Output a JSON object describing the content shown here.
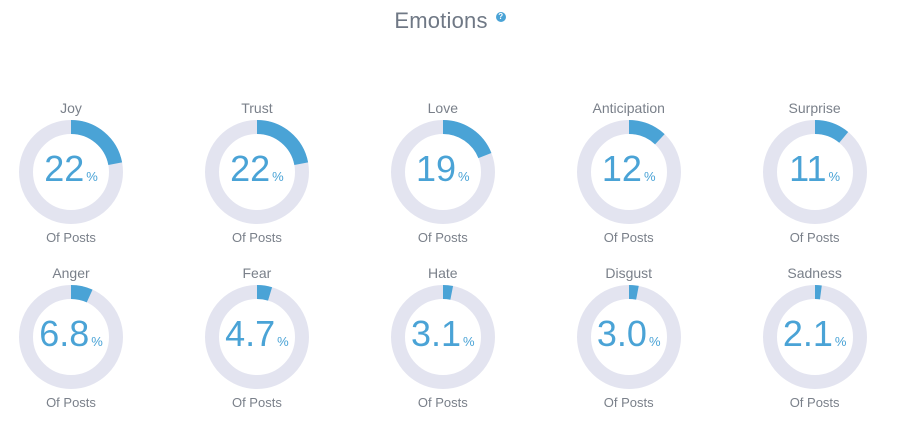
{
  "header": {
    "title": "Emotions",
    "help_icon": "?"
  },
  "chart_data": {
    "type": "pie",
    "unit": "%",
    "track_color": "#e3e4f0",
    "fill_color": "#4aa3d6",
    "items": [
      {
        "label": "Joy",
        "value": 22,
        "value_text": "22",
        "unit": "%",
        "sub": "Of Posts"
      },
      {
        "label": "Trust",
        "value": 22,
        "value_text": "22",
        "unit": "%",
        "sub": "Of Posts"
      },
      {
        "label": "Love",
        "value": 19,
        "value_text": "19",
        "unit": "%",
        "sub": "Of Posts"
      },
      {
        "label": "Anticipation",
        "value": 12,
        "value_text": "12",
        "unit": "%",
        "sub": "Of Posts"
      },
      {
        "label": "Surprise",
        "value": 11,
        "value_text": "11",
        "unit": "%",
        "sub": "Of Posts"
      },
      {
        "label": "Anger",
        "value": 6.8,
        "value_text": "6.8",
        "unit": "%",
        "sub": "Of Posts"
      },
      {
        "label": "Fear",
        "value": 4.7,
        "value_text": "4.7",
        "unit": "%",
        "sub": "Of Posts"
      },
      {
        "label": "Hate",
        "value": 3.1,
        "value_text": "3.1",
        "unit": "%",
        "sub": "Of Posts"
      },
      {
        "label": "Disgust",
        "value": 3.0,
        "value_text": "3.0",
        "unit": "%",
        "sub": "Of Posts"
      },
      {
        "label": "Sadness",
        "value": 2.1,
        "value_text": "2.1",
        "unit": "%",
        "sub": "Of Posts"
      }
    ]
  }
}
